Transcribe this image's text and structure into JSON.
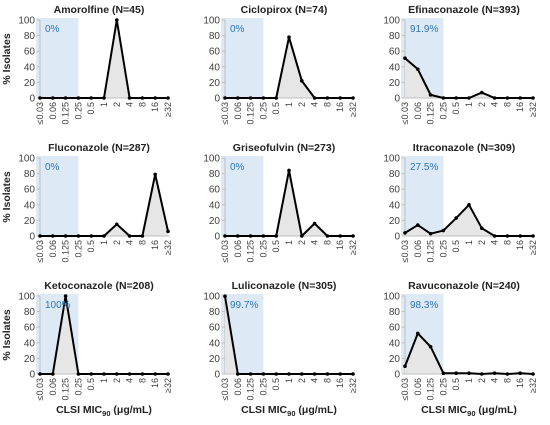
{
  "figure": {
    "ylabel": "% Isolates",
    "xlabel_prefix": "CLSI MIC",
    "xlabel_sub": "90",
    "xlabel_suffix": " (μg/mL)"
  },
  "style": {
    "line_color": "#000000",
    "fill_color": "#e6e6e6",
    "shade_color": "#ddeaf6",
    "pct_text_color": "#2e75b6",
    "axis_color": "#bfbfbf",
    "text_color": "#404040"
  },
  "chart_data": [
    {
      "type": "area",
      "title": "Amorolfine (N=45)",
      "annotation": "0%",
      "x": [
        "≤0.03",
        "0.06",
        "0.125",
        "0.25",
        "0.5",
        "1",
        "2",
        "4",
        "8",
        "16",
        "≥32"
      ],
      "values": [
        0,
        0,
        0,
        0,
        0,
        0,
        100,
        0,
        0,
        0,
        0
      ],
      "shaded_x_range": [
        "≤0.03",
        "0.25"
      ],
      "ylim": [
        0,
        100
      ],
      "yticks": [
        0,
        20,
        40,
        60,
        80,
        100
      ]
    },
    {
      "type": "area",
      "title": "Ciclopirox (N=74)",
      "annotation": "0%",
      "x": [
        "≤0.03",
        "0.06",
        "0.125",
        "0.25",
        "0.5",
        "1",
        "2",
        "4",
        "8",
        "16",
        "≥32"
      ],
      "values": [
        0,
        0,
        0,
        0,
        0,
        78,
        22,
        0,
        0,
        0,
        0
      ],
      "shaded_x_range": [
        "≤0.03",
        "0.25"
      ],
      "ylim": [
        0,
        100
      ],
      "yticks": [
        0,
        20,
        40,
        60,
        80,
        100
      ]
    },
    {
      "type": "area",
      "title": "Efinaconazole (N=393)",
      "annotation": "91.9%",
      "x": [
        "≤0.03",
        "0.06",
        "0.125",
        "0.25",
        "0.5",
        "1",
        "2",
        "4",
        "8",
        "16",
        "≥32"
      ],
      "values": [
        51,
        37,
        4,
        0,
        0,
        0,
        7,
        0,
        0,
        0,
        0
      ],
      "shaded_x_range": [
        "≤0.03",
        "0.25"
      ],
      "ylim": [
        0,
        100
      ],
      "yticks": [
        0,
        20,
        40,
        60,
        80,
        100
      ]
    },
    {
      "type": "area",
      "title": "Fluconazole (N=287)",
      "annotation": "0%",
      "x": [
        "≤0.03",
        "0.06",
        "0.125",
        "0.25",
        "0.5",
        "1",
        "2",
        "4",
        "8",
        "16",
        "≥32"
      ],
      "values": [
        0,
        0,
        0,
        0,
        0,
        0,
        15,
        0,
        0,
        79,
        6
      ],
      "shaded_x_range": [
        "≤0.03",
        "0.25"
      ],
      "ylim": [
        0,
        100
      ],
      "yticks": [
        0,
        20,
        40,
        60,
        80,
        100
      ]
    },
    {
      "type": "area",
      "title": "Griseofulvin (N=273)",
      "annotation": "0%",
      "x": [
        "≤0.03",
        "0.06",
        "0.125",
        "0.25",
        "0.5",
        "1",
        "2",
        "4",
        "8",
        "16",
        "≥32"
      ],
      "values": [
        0,
        0,
        0,
        0,
        0,
        84,
        0,
        16,
        0,
        0,
        0
      ],
      "shaded_x_range": [
        "≤0.03",
        "0.25"
      ],
      "ylim": [
        0,
        100
      ],
      "yticks": [
        0,
        20,
        40,
        60,
        80,
        100
      ]
    },
    {
      "type": "area",
      "title": "Itraconazole (N=309)",
      "annotation": "27.5%",
      "x": [
        "≤0.03",
        "0.06",
        "0.125",
        "0.25",
        "0.5",
        "1",
        "2",
        "4",
        "8",
        "16",
        "≥32"
      ],
      "values": [
        4,
        14,
        3,
        7,
        23,
        40,
        10,
        0,
        0,
        0,
        0
      ],
      "shaded_x_range": [
        "≤0.03",
        "0.25"
      ],
      "ylim": [
        0,
        100
      ],
      "yticks": [
        0,
        20,
        40,
        60,
        80,
        100
      ]
    },
    {
      "type": "area",
      "title": "Ketoconazole (N=208)",
      "annotation": "100%",
      "x": [
        "≤0.03",
        "0.06",
        "0.125",
        "0.25",
        "0.5",
        "1",
        "2",
        "4",
        "8",
        "16",
        "≥32"
      ],
      "values": [
        0,
        0,
        100,
        0,
        0,
        0,
        0,
        0,
        0,
        0,
        0
      ],
      "shaded_x_range": [
        "≤0.03",
        "0.25"
      ],
      "ylim": [
        0,
        100
      ],
      "yticks": [
        0,
        20,
        40,
        60,
        80,
        100
      ]
    },
    {
      "type": "area",
      "title": "Luliconazole (N=305)",
      "annotation": "99.7%",
      "x": [
        "≤0.03",
        "0.06",
        "0.125",
        "0.25",
        "0.5",
        "1",
        "2",
        "4",
        "8",
        "16",
        "≥32"
      ],
      "values": [
        99.7,
        0,
        0,
        0,
        0,
        0,
        0,
        0,
        0,
        0,
        0
      ],
      "shaded_x_range": [
        "≤0.03",
        "0.25"
      ],
      "ylim": [
        0,
        100
      ],
      "yticks": [
        0,
        20,
        40,
        60,
        80,
        100
      ]
    },
    {
      "type": "area",
      "title": "Ravuconazole (N=240)",
      "annotation": "98.3%",
      "x": [
        "≤0.03",
        "0.06",
        "0.125",
        "0.25",
        "0.5",
        "1",
        "2",
        "4",
        "8",
        "16",
        "≥32"
      ],
      "values": [
        10,
        52,
        35,
        1,
        1,
        1,
        0,
        1,
        0,
        1,
        0
      ],
      "shaded_x_range": [
        "≤0.03",
        "0.25"
      ],
      "ylim": [
        0,
        100
      ],
      "yticks": [
        0,
        20,
        40,
        60,
        80,
        100
      ]
    }
  ]
}
